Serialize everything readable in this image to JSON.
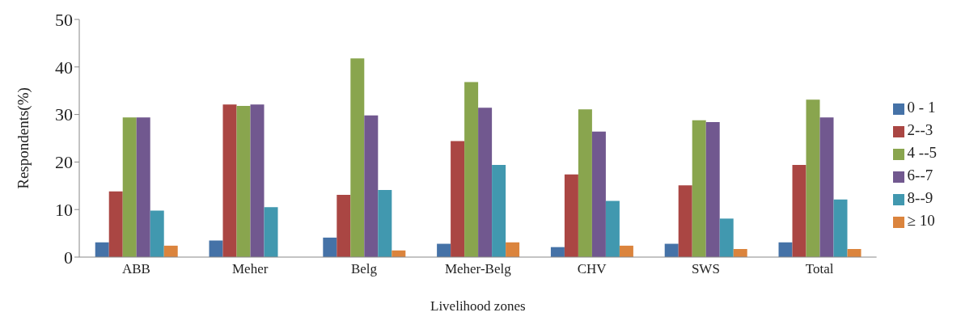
{
  "chart_data": {
    "type": "bar",
    "xlabel": "Livelihood zones",
    "ylabel": "Respondents(%)",
    "categories": [
      "ABB",
      "Meher",
      "Belg",
      "Meher-Belg",
      "CHV",
      "SWS",
      "Total"
    ],
    "series": [
      {
        "name": "0 - 1",
        "color": "#4572a7",
        "values": [
          3.1,
          3.5,
          4.1,
          2.8,
          2.1,
          2.8,
          3.1
        ]
      },
      {
        "name": "2--3",
        "color": "#aa4643",
        "values": [
          13.8,
          32.1,
          13.1,
          24.4,
          17.4,
          15.1,
          19.4
        ]
      },
      {
        "name": "4 --5",
        "color": "#89a54e",
        "values": [
          29.4,
          31.8,
          41.8,
          36.8,
          31.1,
          28.8,
          33.1
        ]
      },
      {
        "name": "6--7",
        "color": "#71588f",
        "values": [
          29.4,
          32.1,
          29.8,
          31.4,
          26.4,
          28.4,
          29.4
        ]
      },
      {
        "name": "8--9",
        "color": "#4198af",
        "values": [
          9.8,
          10.5,
          14.1,
          19.4,
          11.8,
          8.1,
          12.1
        ]
      },
      {
        "name": "≥ 10",
        "color": "#db843d",
        "values": [
          2.4,
          0,
          1.4,
          3.1,
          2.4,
          1.7,
          1.7
        ]
      }
    ],
    "ylim": [
      0,
      50
    ],
    "yticks": [
      0,
      10,
      20,
      30,
      40,
      50
    ],
    "grid": false,
    "legend": "right"
  }
}
